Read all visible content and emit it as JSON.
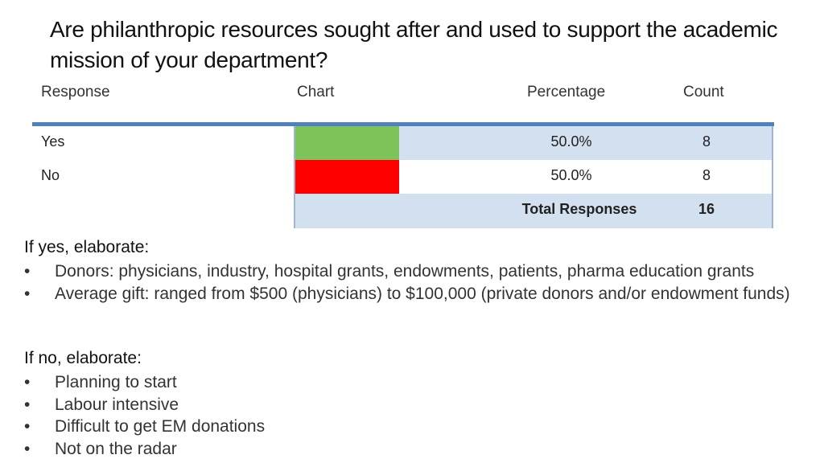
{
  "title": "Are philanthropic resources sought after and used to support the academic mission of your department?",
  "headers": {
    "response": "Response",
    "chart": "Chart",
    "percentage": "Percentage",
    "count": "Count"
  },
  "chart_data": {
    "type": "table",
    "categories": [
      "Yes",
      "No"
    ],
    "percentages": [
      "50.0%",
      "50.0%"
    ],
    "values": [
      50.0,
      50.0
    ],
    "counts": [
      8,
      8
    ],
    "colors": [
      "#7ec25a",
      "#ff0000"
    ],
    "total_label": "Total Responses",
    "total": 16
  },
  "yes_section": {
    "title": "If yes, elaborate:",
    "items": [
      "Donors: physicians, industry, hospital grants, endowments, patients, pharma education grants",
      "Average gift: ranged from $500 (physicians) to $100,000 (private donors and/or endowment funds)"
    ]
  },
  "no_section": {
    "title": "If no, elaborate:",
    "items": [
      "Planning to start",
      "Labour intensive",
      "Difficult to get EM donations",
      "Not on the radar"
    ]
  }
}
